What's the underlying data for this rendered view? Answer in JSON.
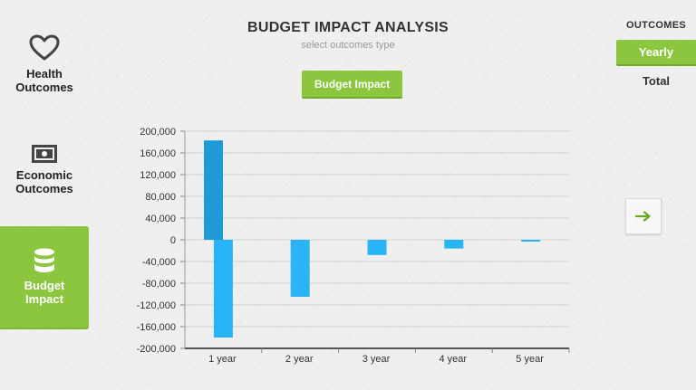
{
  "header": {
    "title": "BUDGET IMPACT ANALYSIS",
    "subtitle": "select outcomes type",
    "type_button": "Budget Impact"
  },
  "sidebar": {
    "items": [
      {
        "label_line1": "Health",
        "label_line2": "Outcomes",
        "icon": "heart-icon"
      },
      {
        "label_line1": "Economic",
        "label_line2": "Outcomes",
        "icon": "banknote-icon"
      },
      {
        "label_line1": "Budget",
        "label_line2": "Impact",
        "icon": "database-icon",
        "active": true
      }
    ]
  },
  "outcomes": {
    "title": "OUTCOMES",
    "options": [
      "Yearly",
      "Total"
    ],
    "selected": "Yearly"
  },
  "next_icon": "arrow-right-icon",
  "colors": {
    "accent": "#8cc63f",
    "bar_dark": "#1e9bd7",
    "bar_mid": "#29b5f5",
    "bar_light": "#4fc4f5"
  },
  "chart_data": {
    "type": "bar",
    "ylim": [
      -200000,
      200000
    ],
    "y_ticks": [
      "200,000",
      "160,000",
      "120,000",
      "80,000",
      "40,000",
      "0",
      "-40,000",
      "-80,000",
      "-120,000",
      "-160,000",
      "-200,000"
    ],
    "categories": [
      "1 year",
      "2 year",
      "3 year",
      "4 year",
      "5 year"
    ],
    "series": [
      {
        "values": [
          183000,
          null,
          null,
          null,
          null
        ],
        "color": "#1e9bd7"
      },
      {
        "values": [
          -180000,
          -105000,
          -28000,
          -16000,
          -2000
        ],
        "color": "#29b5f5"
      }
    ],
    "grid": true
  }
}
